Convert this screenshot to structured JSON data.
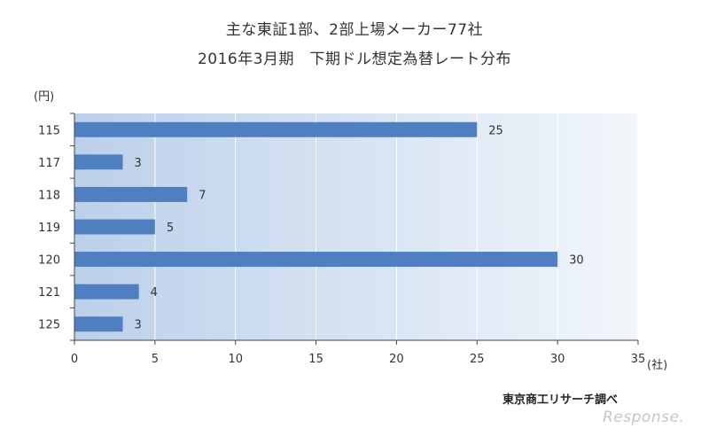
{
  "chart_data": {
    "type": "bar",
    "orientation": "horizontal",
    "title": "主な東証1部、2部上場メーカー77社",
    "subtitle": "2016年3月期　下期ドル想定為替レート分布",
    "y_unit": "(円)",
    "x_unit": "(社)",
    "categories": [
      "115",
      "117",
      "118",
      "119",
      "120",
      "121",
      "125"
    ],
    "values": [
      25,
      3,
      7,
      5,
      30,
      4,
      3
    ],
    "xlim": [
      0,
      35
    ],
    "xticks": [
      0,
      5,
      10,
      15,
      20,
      25,
      30,
      35
    ],
    "grid": true,
    "bar_color": "#4f7fc1",
    "plot_bg_from": "#bcd0ea",
    "plot_bg_to": "#f2f6fb"
  },
  "source": "東京商工リサーチ調べ",
  "watermark": "Response."
}
